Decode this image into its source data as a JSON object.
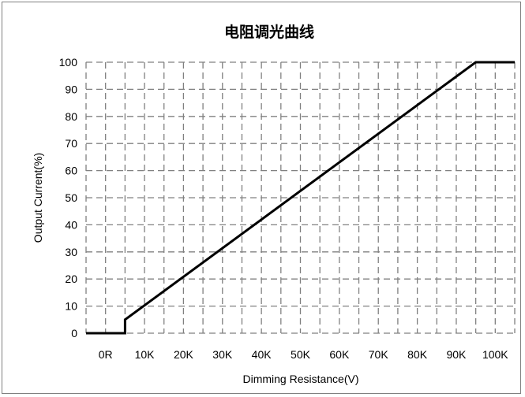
{
  "chart_data": {
    "type": "line",
    "title": "电阻调光曲线",
    "xlabel": "Dimming Resistance(V)",
    "ylabel": "Output Current(%)",
    "x_tick_labels": [
      "0R",
      "10K",
      "20K",
      "30K",
      "40K",
      "50K",
      "60K",
      "70K",
      "80K",
      "90K",
      "100K"
    ],
    "y_ticks": [
      0,
      10,
      20,
      30,
      40,
      50,
      60,
      70,
      80,
      90,
      100
    ],
    "xlim": [
      -5,
      105
    ],
    "ylim": [
      0,
      100
    ],
    "grid": true,
    "line_color": "#000000",
    "grid_color": "#808080",
    "series": [
      {
        "x": [
          -5,
          5,
          5,
          95,
          105
        ],
        "y": [
          0,
          0,
          5,
          100,
          100
        ]
      }
    ]
  }
}
